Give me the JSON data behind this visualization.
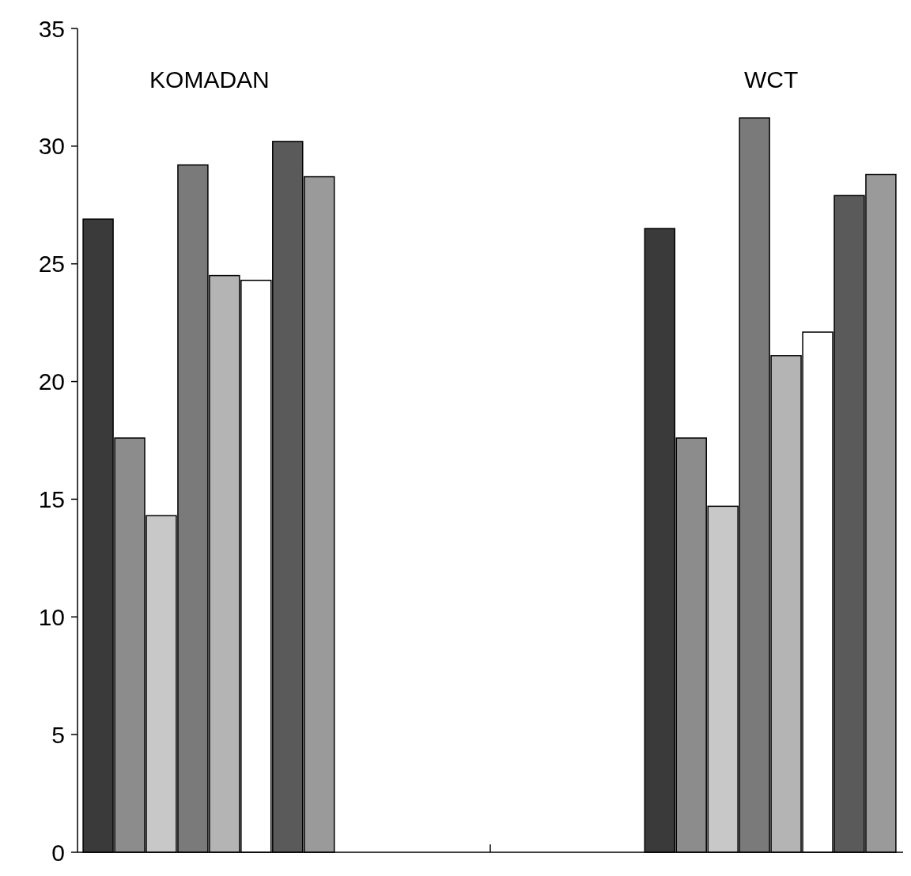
{
  "chart_data": {
    "type": "bar",
    "categories": [
      "KOMADAN",
      "WCT"
    ],
    "series": [
      {
        "color": "#3a3a3a",
        "values": [
          26.9,
          26.5
        ]
      },
      {
        "color": "#8c8c8c",
        "values": [
          17.6,
          17.6
        ]
      },
      {
        "color": "#c8c8c8",
        "values": [
          14.3,
          14.7
        ]
      },
      {
        "color": "#7a7a7a",
        "values": [
          29.2,
          31.2
        ]
      },
      {
        "color": "#b4b4b4",
        "values": [
          24.5,
          21.1
        ]
      },
      {
        "color": "#ffffff",
        "values": [
          24.3,
          22.1
        ]
      },
      {
        "color": "#5a5a5a",
        "values": [
          30.2,
          27.9
        ]
      },
      {
        "color": "#9a9a9a",
        "values": [
          28.7,
          28.8
        ]
      }
    ],
    "ylim": [
      0,
      35
    ],
    "yticks": [
      0,
      5,
      10,
      15,
      20,
      25,
      30,
      35
    ],
    "grid": false
  }
}
